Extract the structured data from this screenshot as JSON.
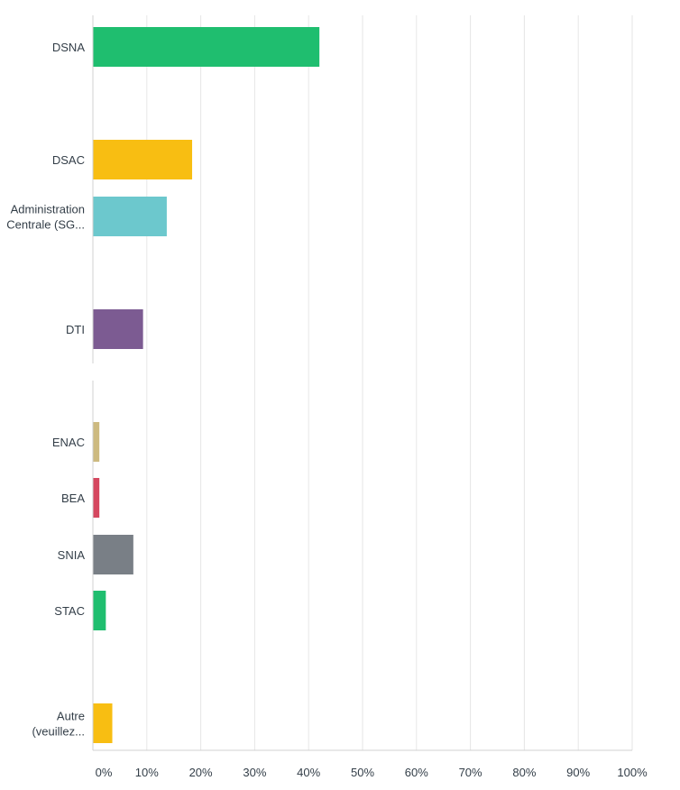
{
  "chart_data": {
    "type": "bar",
    "orientation": "horizontal",
    "categories": [
      [
        "DSNA"
      ],
      [
        "DSAC"
      ],
      [
        "Administration",
        "Centrale (SG..."
      ],
      [
        "DTI"
      ],
      [
        "ENAC"
      ],
      [
        "BEA"
      ],
      [
        "SNIA"
      ],
      [
        "STAC"
      ],
      [
        "Autre",
        "(veuillez..."
      ]
    ],
    "values": [
      42,
      18.4,
      13.7,
      9.3,
      1.2,
      1.2,
      7.5,
      2.4,
      3.6
    ],
    "colors": [
      "#1fbe6f",
      "#f8be12",
      "#6cc8cd",
      "#7c5b92",
      "#cdba80",
      "#d5475f",
      "#797f86",
      "#1fbe6f",
      "#f8be12"
    ],
    "xlim": [
      0,
      100
    ],
    "xticks": [
      "0%",
      "10%",
      "20%",
      "30%",
      "40%",
      "50%",
      "60%",
      "70%",
      "80%",
      "90%",
      "100%"
    ],
    "grid": true,
    "title": "",
    "xlabel": "",
    "ylabel": ""
  }
}
